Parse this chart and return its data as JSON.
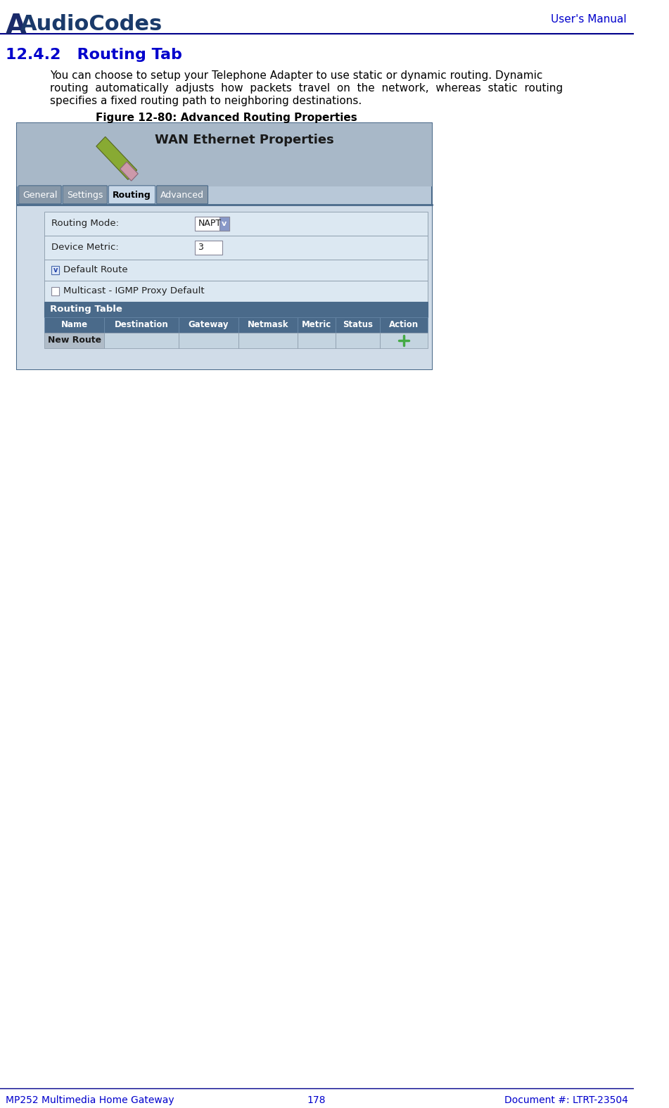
{
  "page_bg": "#ffffff",
  "header_line_color": "#00008B",
  "header_text_color": "#0000CC",
  "footer_text_color": "#0000CC",
  "footer_line_color": "#00008B",
  "logo_text": "AudioCodes",
  "header_right": "User's Manual",
  "footer_left": "MP252 Multimedia Home Gateway",
  "footer_center": "178",
  "footer_right": "Document #: LTRT-23504",
  "section_title": "12.4.2   Routing Tab",
  "section_title_color": "#0000CC",
  "body_text_line1": "You can choose to setup your Telephone Adapter to use static or dynamic routing. Dynamic",
  "body_text_line2": "routing  automatically  adjusts  how  packets  travel  on  the  network,  whereas  static  routing",
  "body_text_line3": "specifies a fixed routing path to neighboring destinations.",
  "figure_caption": "Figure 12-80: Advanced Routing Properties",
  "ui_bg": "#b8c8d8",
  "ui_border": "#4a6a8a",
  "ui_header_bg": "#a8b8c8",
  "wan_title": "WAN Ethernet Properties",
  "tabs": [
    "General",
    "Settings",
    "Routing",
    "Advanced"
  ],
  "active_tab": "Routing",
  "tab_bg": "#8898a8",
  "active_tab_bg": "#c8d8e8",
  "tab_text_color": "#ffffff",
  "active_tab_text_color": "#000000",
  "content_bg": "#d0dce8",
  "routing_mode_label": "Routing Mode:",
  "routing_mode_value": "NAPT",
  "device_metric_label": "Device Metric:",
  "device_metric_value": "3",
  "default_route_label": "Default Route",
  "multicast_label": "Multicast - IGMP Proxy Default",
  "table_header_bg": "#4a6a8a",
  "table_header_text": "#ffffff",
  "table_headers": [
    "Name",
    "Destination",
    "Gateway",
    "Netmask",
    "Metric",
    "Status",
    "Action"
  ],
  "table_row_bg": "#c8d0d8",
  "new_route_label": "New Route",
  "row_label_bg": "#b0bcc8",
  "separator_color": "#8898a8",
  "body_text_color": "#000000",
  "figure_caption_color": "#000000"
}
